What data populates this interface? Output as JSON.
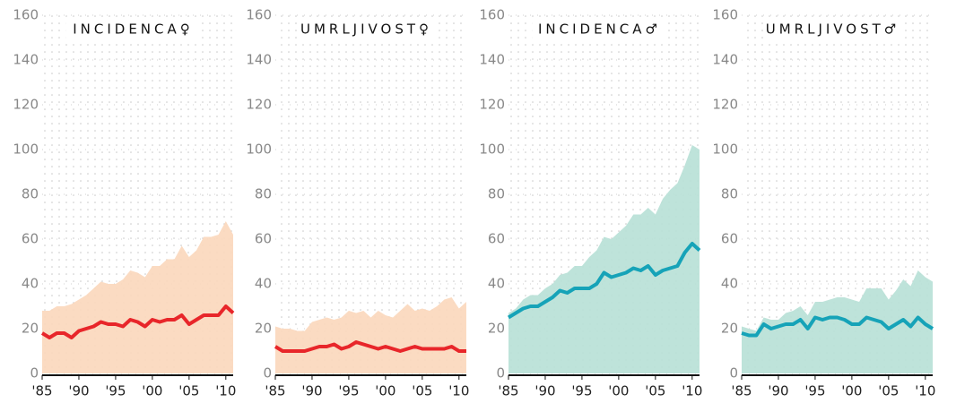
{
  "chart_data": [
    {
      "type": "area-line",
      "title": "INCIDENCA♀",
      "x": [
        1985,
        1986,
        1987,
        1988,
        1989,
        1990,
        1991,
        1992,
        1993,
        1994,
        1995,
        1996,
        1997,
        1998,
        1999,
        2000,
        2001,
        2002,
        2003,
        2004,
        2005,
        2006,
        2007,
        2008,
        2009,
        2010,
        2011
      ],
      "series": [
        {
          "kind": "area",
          "color": "#fbd7bb",
          "values": [
            28,
            28,
            30,
            30,
            31,
            33,
            35,
            38,
            41,
            40,
            40,
            42,
            46,
            45,
            43,
            48,
            48,
            51,
            51,
            57,
            52,
            55,
            61,
            61,
            62,
            68,
            62
          ]
        },
        {
          "kind": "line",
          "color": "#e8262a",
          "values": [
            18,
            16,
            18,
            18,
            16,
            19,
            20,
            21,
            23,
            22,
            22,
            21,
            24,
            23,
            21,
            24,
            23,
            24,
            24,
            26,
            22,
            24,
            26,
            26,
            26,
            30,
            27
          ]
        }
      ],
      "xlim": [
        1985,
        2011
      ],
      "ylim": [
        0,
        160
      ],
      "yticks": [
        0,
        20,
        40,
        60,
        80,
        100,
        120,
        140,
        160
      ],
      "xticks": [
        {
          "value": 1985,
          "label": "'85"
        },
        {
          "value": 1990,
          "label": "'90"
        },
        {
          "value": 1995,
          "label": "'95"
        },
        {
          "value": 2000,
          "label": "'00"
        },
        {
          "value": 2005,
          "label": "'05"
        },
        {
          "value": 2010,
          "label": "'10"
        }
      ]
    },
    {
      "type": "area-line",
      "title": "UMRLJIVOST♀",
      "x": [
        1985,
        1986,
        1987,
        1988,
        1989,
        1990,
        1991,
        1992,
        1993,
        1994,
        1995,
        1996,
        1997,
        1998,
        1999,
        2000,
        2001,
        2002,
        2003,
        2004,
        2005,
        2006,
        2007,
        2008,
        2009,
        2010,
        2011
      ],
      "series": [
        {
          "kind": "area",
          "color": "#fbd7bb",
          "values": [
            21,
            20,
            20,
            19,
            19,
            23,
            24,
            25,
            24,
            25,
            28,
            27,
            28,
            25,
            28,
            26,
            25,
            28,
            31,
            28,
            29,
            28,
            30,
            33,
            34,
            29,
            32
          ]
        },
        {
          "kind": "line",
          "color": "#e8262a",
          "values": [
            12,
            10,
            10,
            10,
            10,
            11,
            12,
            12,
            13,
            11,
            12,
            14,
            13,
            12,
            11,
            12,
            11,
            10,
            11,
            12,
            11,
            11,
            11,
            11,
            12,
            10,
            10
          ]
        }
      ],
      "xlim": [
        1985,
        2011
      ],
      "ylim": [
        0,
        160
      ],
      "yticks": [
        0,
        20,
        40,
        60,
        80,
        100,
        120,
        140,
        160
      ],
      "xticks": [
        {
          "value": 1985,
          "label": "'85"
        },
        {
          "value": 1990,
          "label": "'90"
        },
        {
          "value": 1995,
          "label": "'95"
        },
        {
          "value": 2000,
          "label": "'00"
        },
        {
          "value": 2005,
          "label": "'05"
        },
        {
          "value": 2010,
          "label": "'10"
        }
      ]
    },
    {
      "type": "area-line",
      "title": "INCIDENCA♂",
      "x": [
        1985,
        1986,
        1987,
        1988,
        1989,
        1990,
        1991,
        1992,
        1993,
        1994,
        1995,
        1996,
        1997,
        1998,
        1999,
        2000,
        2001,
        2002,
        2003,
        2004,
        2005,
        2006,
        2007,
        2008,
        2009,
        2010,
        2011
      ],
      "series": [
        {
          "kind": "area",
          "color": "#b7e0d6",
          "values": [
            27,
            29,
            33,
            35,
            35,
            38,
            40,
            44,
            45,
            48,
            48,
            52,
            55,
            61,
            60,
            63,
            66,
            71,
            71,
            74,
            71,
            78,
            82,
            85,
            93,
            102,
            100
          ]
        },
        {
          "kind": "line",
          "color": "#16a3b8",
          "values": [
            25,
            27,
            29,
            30,
            30,
            32,
            34,
            37,
            36,
            38,
            38,
            38,
            40,
            45,
            43,
            44,
            45,
            47,
            46,
            48,
            44,
            46,
            47,
            48,
            54,
            58,
            55
          ]
        }
      ],
      "xlim": [
        1985,
        2011
      ],
      "ylim": [
        0,
        160
      ],
      "yticks": [
        0,
        20,
        40,
        60,
        80,
        100,
        120,
        140,
        160
      ],
      "xticks": [
        {
          "value": 1985,
          "label": "'85"
        },
        {
          "value": 1990,
          "label": "'90"
        },
        {
          "value": 1995,
          "label": "'95"
        },
        {
          "value": 2000,
          "label": "'00"
        },
        {
          "value": 2005,
          "label": "'05"
        },
        {
          "value": 2010,
          "label": "'10"
        }
      ]
    },
    {
      "type": "area-line",
      "title": "UMRLJIVOST♂",
      "x": [
        1985,
        1986,
        1987,
        1988,
        1989,
        1990,
        1991,
        1992,
        1993,
        1994,
        1995,
        1996,
        1997,
        1998,
        1999,
        2000,
        2001,
        2002,
        2003,
        2004,
        2005,
        2006,
        2007,
        2008,
        2009,
        2010,
        2011
      ],
      "series": [
        {
          "kind": "area",
          "color": "#b7e0d6",
          "values": [
            21,
            20,
            19,
            25,
            24,
            24,
            27,
            28,
            30,
            26,
            32,
            32,
            33,
            34,
            34,
            33,
            32,
            38,
            38,
            38,
            33,
            37,
            42,
            39,
            46,
            43,
            41
          ]
        },
        {
          "kind": "line",
          "color": "#16a3b8",
          "values": [
            18,
            17,
            17,
            22,
            20,
            21,
            22,
            22,
            24,
            20,
            25,
            24,
            25,
            25,
            24,
            22,
            22,
            25,
            24,
            23,
            20,
            22,
            24,
            21,
            25,
            22,
            20
          ]
        }
      ],
      "xlim": [
        1985,
        2011
      ],
      "ylim": [
        0,
        160
      ],
      "yticks": [
        0,
        20,
        40,
        60,
        80,
        100,
        120,
        140,
        160
      ],
      "xticks": [
        {
          "value": 1985,
          "label": "'85"
        },
        {
          "value": 1990,
          "label": "'90"
        },
        {
          "value": 1995,
          "label": "'95"
        },
        {
          "value": 2000,
          "label": "'00"
        },
        {
          "value": 2005,
          "label": "'05"
        },
        {
          "value": 2010,
          "label": "'10"
        }
      ]
    }
  ]
}
